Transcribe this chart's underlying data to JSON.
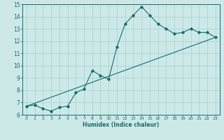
{
  "xlabel": "Humidex (Indice chaleur)",
  "xlim": [
    -0.5,
    23.5
  ],
  "ylim": [
    6,
    15
  ],
  "xticks": [
    0,
    1,
    2,
    3,
    4,
    5,
    6,
    7,
    8,
    9,
    10,
    11,
    12,
    13,
    14,
    15,
    16,
    17,
    18,
    19,
    20,
    21,
    22,
    23
  ],
  "yticks": [
    6,
    7,
    8,
    9,
    10,
    11,
    12,
    13,
    14,
    15
  ],
  "bg_color": "#cce9e8",
  "grid_color": "#aad4d2",
  "line_color": "#1a6b6b",
  "curve_x": [
    0,
    1,
    2,
    3,
    4,
    5,
    6,
    7,
    8,
    9,
    10,
    11,
    12,
    13,
    14,
    15,
    16,
    17,
    18,
    19,
    20,
    21,
    22,
    23
  ],
  "curve_y": [
    6.7,
    6.8,
    6.5,
    6.3,
    6.6,
    6.7,
    7.8,
    8.1,
    9.6,
    9.2,
    8.9,
    11.5,
    13.4,
    14.1,
    14.8,
    14.1,
    13.4,
    13.0,
    12.6,
    12.7,
    13.0,
    12.7,
    12.7,
    12.3
  ],
  "trend_x": [
    0,
    23
  ],
  "trend_y": [
    6.7,
    12.3
  ]
}
